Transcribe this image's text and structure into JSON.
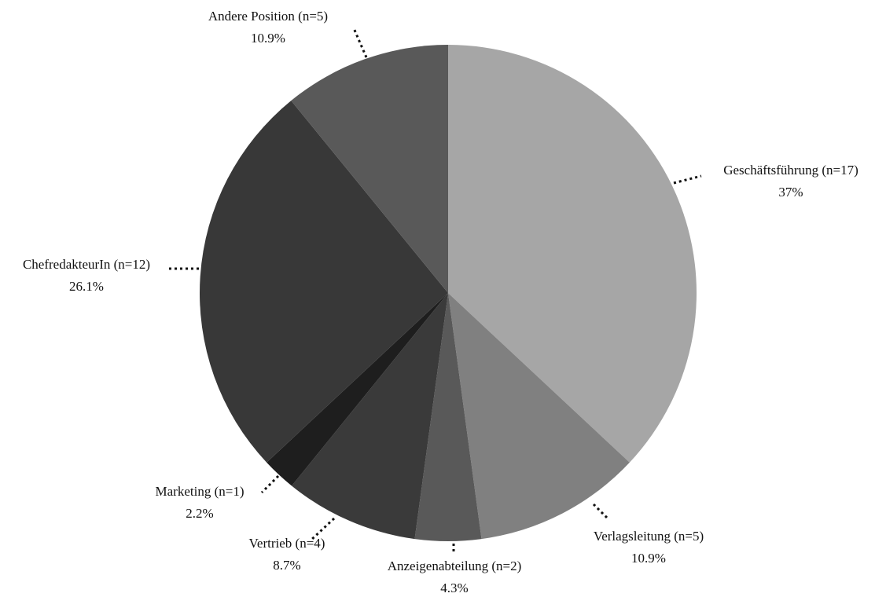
{
  "chart_data": {
    "type": "pie",
    "categories": [
      "Geschäftsführung (n=17)",
      "Verlagsleitung (n=5)",
      "Anzeigenabteilung (n=2)",
      "Vertrieb (n=4)",
      "Marketing (n=1)",
      "ChefredakteurIn (n=12)",
      "Andere Position (n=5)"
    ],
    "values": [
      37,
      10.9,
      4.3,
      8.7,
      2.2,
      26.1,
      10.9
    ],
    "value_labels": [
      "37%",
      "10.9%",
      "4.3%",
      "8.7%",
      "2.2%",
      "26.1%",
      "10.9%"
    ],
    "colors": [
      "#a6a6a6",
      "#808080",
      "#595959",
      "#3a3a3a",
      "#1e1e1e",
      "#383838",
      "#595959"
    ]
  }
}
